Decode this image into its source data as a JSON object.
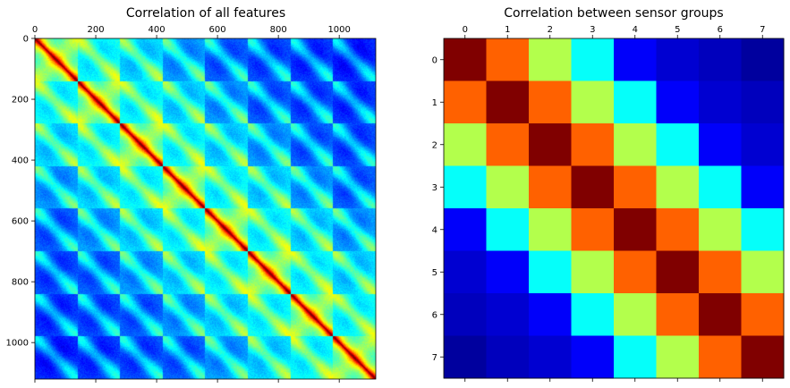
{
  "chart_data": [
    {
      "type": "heatmap",
      "title": "Correlation of all features",
      "colormap": "jet",
      "matrix_size": 1120,
      "block_count": 8,
      "x_ticks": [
        "0",
        "200",
        "400",
        "600",
        "800",
        "1000"
      ],
      "x_tick_values": [
        0,
        200,
        400,
        600,
        800,
        1000
      ],
      "y_ticks": [
        "0",
        "200",
        "400",
        "600",
        "800",
        "1000"
      ],
      "y_tick_values": [
        0,
        200,
        400,
        600,
        800,
        1000
      ],
      "xlim": [
        0,
        1120
      ],
      "ylim": [
        0,
        1120
      ],
      "x_axis_position": "top"
    },
    {
      "type": "heatmap",
      "title": "Correlation between sensor groups",
      "colormap": "jet",
      "x_ticks": [
        "0",
        "1",
        "2",
        "3",
        "4",
        "5",
        "6",
        "7"
      ],
      "y_ticks": [
        "0",
        "1",
        "2",
        "3",
        "4",
        "5",
        "6",
        "7"
      ],
      "x_axis_position": "top",
      "vmin": 0.0,
      "vmax": 1.0,
      "matrix": [
        [
          1.0,
          0.78,
          0.55,
          0.38,
          0.12,
          0.08,
          0.06,
          0.03
        ],
        [
          0.78,
          1.0,
          0.78,
          0.55,
          0.38,
          0.12,
          0.08,
          0.06
        ],
        [
          0.55,
          0.78,
          1.0,
          0.78,
          0.55,
          0.38,
          0.12,
          0.08
        ],
        [
          0.38,
          0.55,
          0.78,
          1.0,
          0.78,
          0.55,
          0.38,
          0.12
        ],
        [
          0.12,
          0.38,
          0.55,
          0.78,
          1.0,
          0.78,
          0.55,
          0.38
        ],
        [
          0.08,
          0.12,
          0.38,
          0.55,
          0.78,
          1.0,
          0.78,
          0.55
        ],
        [
          0.06,
          0.08,
          0.12,
          0.38,
          0.55,
          0.78,
          1.0,
          0.78
        ],
        [
          0.03,
          0.06,
          0.08,
          0.12,
          0.38,
          0.55,
          0.78,
          1.0
        ]
      ]
    }
  ]
}
